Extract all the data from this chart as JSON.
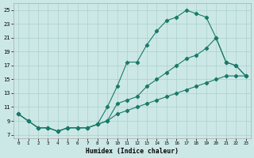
{
  "xlabel": "Humidex (Indice chaleur)",
  "bg_color": "#cce8e6",
  "line_color": "#1a7a6a",
  "grid_color": "#aad0cc",
  "xlim": [
    -0.5,
    23.5
  ],
  "ylim": [
    6.5,
    26
  ],
  "xticks": [
    0,
    1,
    2,
    3,
    4,
    5,
    6,
    7,
    8,
    9,
    10,
    11,
    12,
    13,
    14,
    15,
    16,
    17,
    18,
    19,
    20,
    21,
    22,
    23
  ],
  "yticks": [
    7,
    9,
    11,
    13,
    15,
    17,
    19,
    21,
    23,
    25
  ],
  "line1_x": [
    0,
    1,
    2,
    3,
    4,
    5,
    6,
    7,
    8,
    9,
    10,
    11,
    12,
    13,
    14,
    15,
    16,
    17,
    18,
    19,
    20,
    21,
    22,
    23
  ],
  "line1_y": [
    10,
    9,
    8,
    8,
    7.5,
    8,
    8,
    8,
    8.5,
    11,
    14,
    17.5,
    17.5,
    20,
    22,
    23.5,
    24,
    25,
    24.5,
    24,
    21,
    17.5,
    17,
    15.5
  ],
  "line2_x": [
    0,
    1,
    2,
    3,
    4,
    5,
    6,
    7,
    8,
    9,
    10,
    11,
    12,
    13,
    14,
    15,
    16,
    17,
    18,
    19,
    20,
    21,
    22,
    23
  ],
  "line2_y": [
    10,
    9,
    8,
    8,
    7.5,
    8,
    8,
    8,
    8.5,
    9,
    11.5,
    12,
    12.5,
    14,
    15,
    16,
    17,
    18,
    18.5,
    19.5,
    21,
    17.5,
    17,
    15.5
  ],
  "line3_x": [
    0,
    1,
    2,
    3,
    4,
    5,
    6,
    7,
    8,
    9,
    10,
    11,
    12,
    13,
    14,
    15,
    16,
    17,
    18,
    19,
    20,
    21,
    22,
    23
  ],
  "line3_y": [
    10,
    9,
    8,
    8,
    7.5,
    8,
    8,
    8,
    8.5,
    9,
    10,
    10.5,
    11,
    11.5,
    12,
    12.5,
    13,
    13.5,
    14,
    14.5,
    15,
    15.5,
    15.5,
    15.5
  ]
}
